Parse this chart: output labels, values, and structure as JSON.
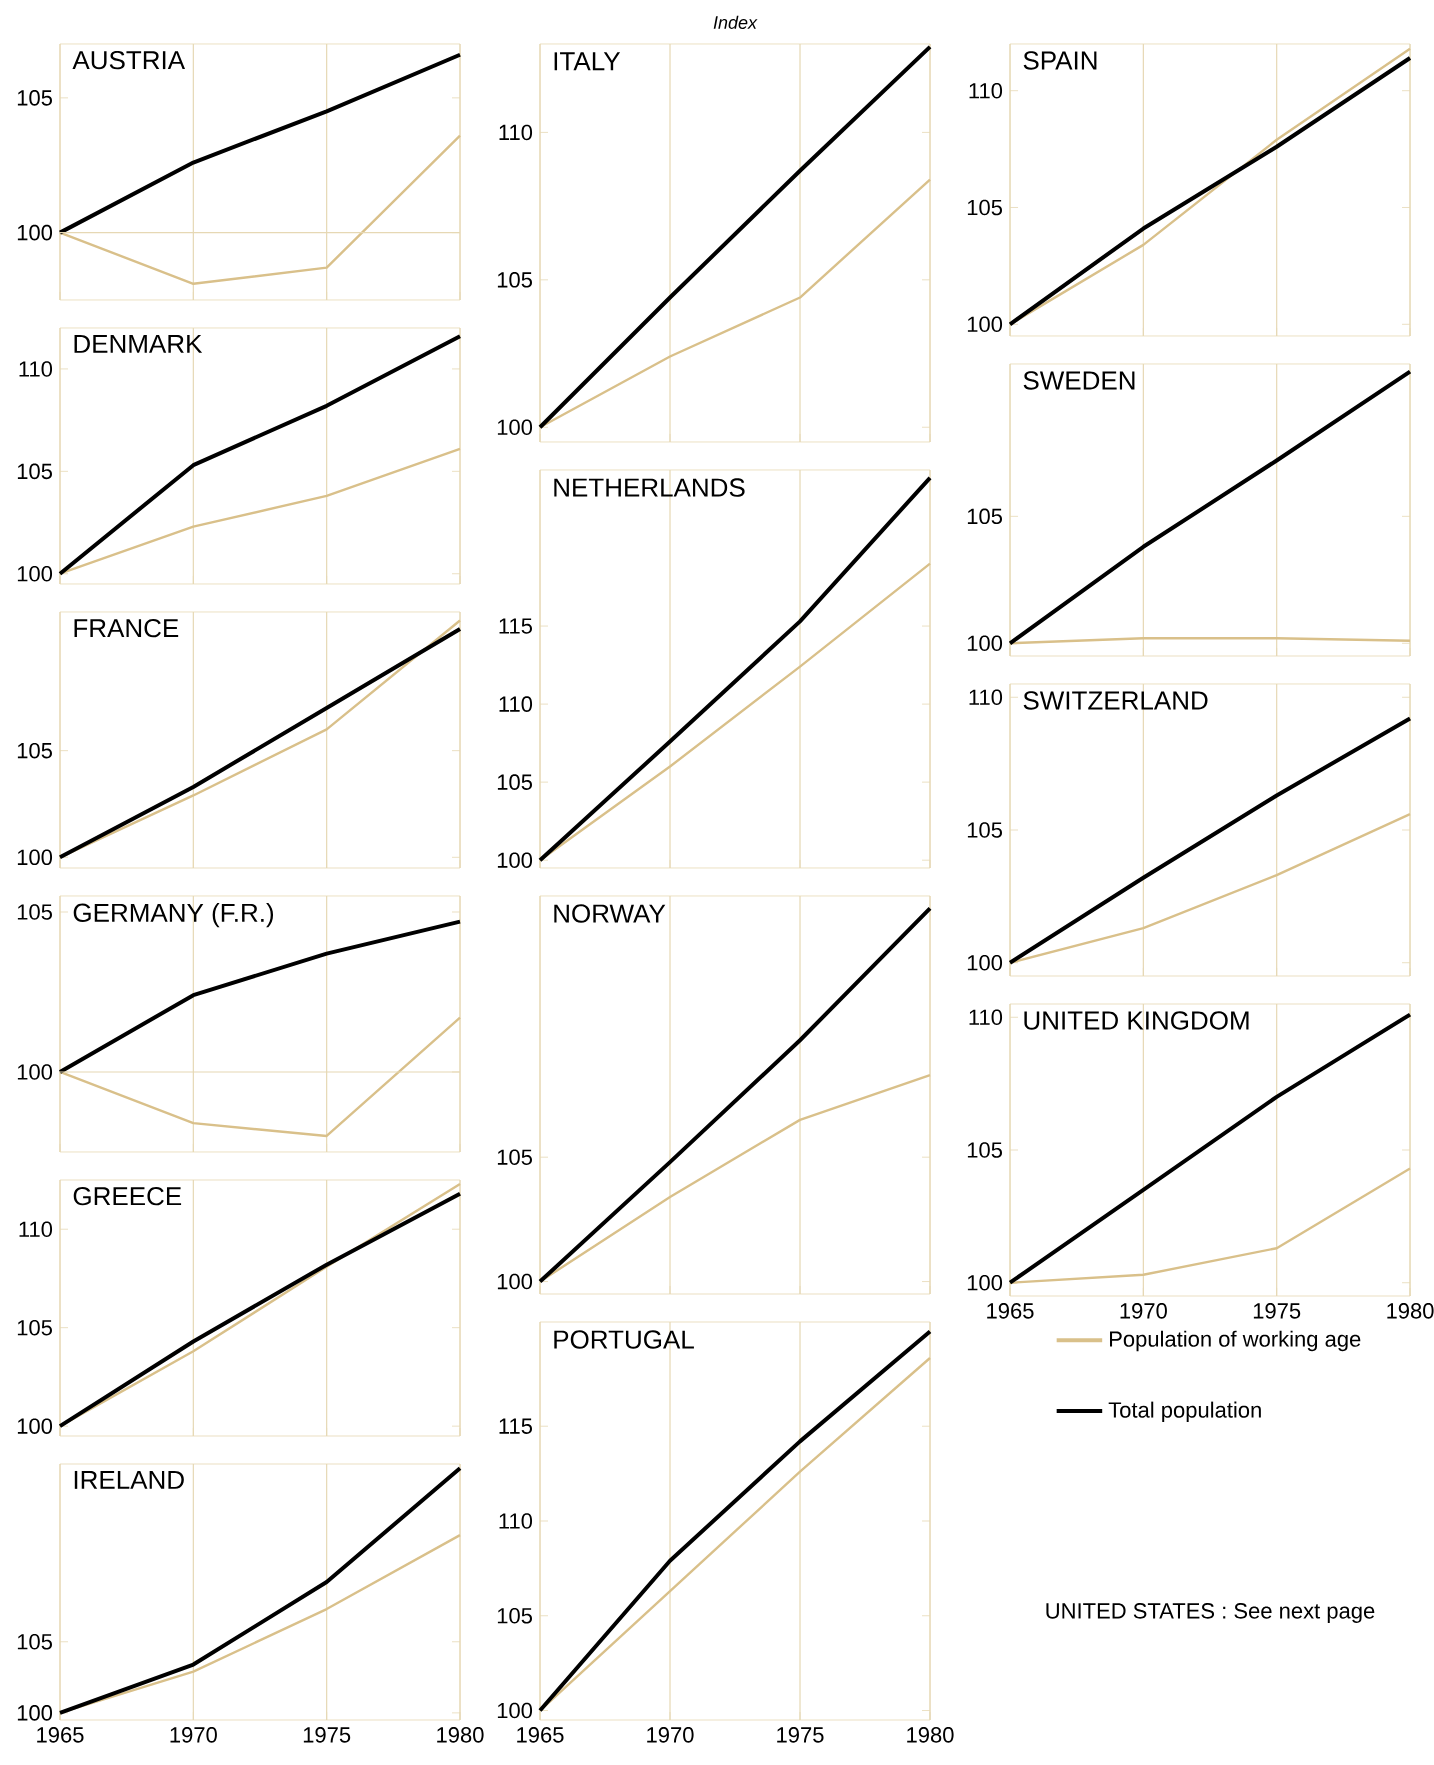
{
  "chart_data": [
    {
      "type": "line",
      "title": "AUSTRIA",
      "x": [
        1965,
        1970,
        1975,
        1980
      ],
      "xlim": [
        1965,
        1980
      ],
      "xticks": [
        1965,
        1970,
        1975,
        1980
      ],
      "ylim": [
        97.5,
        107
      ],
      "yticks": [
        100,
        105
      ],
      "grid": "x",
      "tick_labels": "y",
      "ref_lines": [
        {
          "axis": "y",
          "value": 100,
          "color": "#e6d8b4"
        }
      ],
      "series": [
        {
          "color": "#d9c08a",
          "values": [
            100,
            98.1,
            98.7,
            103.6
          ]
        },
        {
          "color": "#000000",
          "values": [
            100,
            102.6,
            104.5,
            106.6
          ]
        }
      ]
    },
    {
      "type": "line",
      "title": "DENMARK",
      "x": [
        1965,
        1970,
        1975,
        1980
      ],
      "xlim": [
        1965,
        1980
      ],
      "xticks": [
        1965,
        1970,
        1975,
        1980
      ],
      "ylim": [
        99.5,
        112
      ],
      "yticks": [
        100,
        105,
        110
      ],
      "grid": "x",
      "tick_labels": "y",
      "series": [
        {
          "color": "#d9c08a",
          "values": [
            100,
            102.3,
            103.8,
            106.1
          ]
        },
        {
          "color": "#000000",
          "values": [
            100,
            105.3,
            108.2,
            111.6
          ]
        }
      ]
    },
    {
      "type": "line",
      "title": "FRANCE",
      "x": [
        1965,
        1970,
        1975,
        1980
      ],
      "xlim": [
        1965,
        1980
      ],
      "xticks": [
        1965,
        1970,
        1975,
        1980
      ],
      "ylim": [
        99.5,
        111.5
      ],
      "yticks": [
        100,
        105
      ],
      "grid": "x",
      "tick_labels": "y",
      "series": [
        {
          "color": "#d9c08a",
          "values": [
            100,
            102.9,
            106.0,
            111.1
          ]
        },
        {
          "color": "#000000",
          "values": [
            100,
            103.3,
            107.0,
            110.7
          ]
        }
      ]
    },
    {
      "type": "line",
      "title": "GERMANY (F.R.)",
      "x": [
        1965,
        1970,
        1975,
        1980
      ],
      "xlim": [
        1965,
        1980
      ],
      "xticks": [
        1965,
        1970,
        1975,
        1980
      ],
      "ylim": [
        97.5,
        105.5
      ],
      "yticks": [
        100,
        105
      ],
      "grid": "x",
      "tick_labels": "y",
      "ref_lines": [
        {
          "axis": "y",
          "value": 100,
          "color": "#e6d8b4"
        }
      ],
      "series": [
        {
          "color": "#d9c08a",
          "values": [
            100,
            98.4,
            98.0,
            101.7
          ]
        },
        {
          "color": "#000000",
          "values": [
            100,
            102.4,
            103.7,
            104.7
          ]
        }
      ]
    },
    {
      "type": "line",
      "title": "GREECE",
      "x": [
        1965,
        1970,
        1975,
        1980
      ],
      "xlim": [
        1965,
        1980
      ],
      "xticks": [
        1965,
        1970,
        1975,
        1980
      ],
      "ylim": [
        99.5,
        112.5
      ],
      "yticks": [
        100,
        105,
        110
      ],
      "grid": "x",
      "tick_labels": "y",
      "series": [
        {
          "color": "#d9c08a",
          "values": [
            100,
            103.8,
            108.1,
            112.3
          ]
        },
        {
          "color": "#000000",
          "values": [
            100,
            104.3,
            108.2,
            111.8
          ]
        }
      ]
    },
    {
      "type": "line",
      "title": "IRELAND",
      "x": [
        1965,
        1970,
        1975,
        1980
      ],
      "xlim": [
        1965,
        1980
      ],
      "xticks": [
        1965,
        1970,
        1975,
        1980
      ],
      "ylim": [
        99.5,
        117.5
      ],
      "yticks": [
        100,
        105
      ],
      "grid": "x",
      "series": [
        {
          "color": "#d9c08a",
          "values": [
            100,
            102.9,
            107.3,
            112.5
          ]
        },
        {
          "color": "#000000",
          "values": [
            100,
            103.4,
            109.2,
            117.2
          ]
        }
      ]
    },
    {
      "type": "line",
      "title": "ITALY",
      "ylabel": "Index",
      "x": [
        1965,
        1970,
        1975,
        1980
      ],
      "xlim": [
        1965,
        1980
      ],
      "xticks": [
        1965,
        1970,
        1975,
        1980
      ],
      "ylim": [
        99.5,
        113
      ],
      "yticks": [
        100,
        105,
        110
      ],
      "grid": "x",
      "tick_labels": "y",
      "series": [
        {
          "color": "#d9c08a",
          "values": [
            100,
            102.4,
            104.4,
            108.4
          ]
        },
        {
          "color": "#000000",
          "values": [
            100,
            104.4,
            108.7,
            112.9
          ]
        }
      ]
    },
    {
      "type": "line",
      "title": "NETHERLANDS",
      "x": [
        1965,
        1970,
        1975,
        1980
      ],
      "xlim": [
        1965,
        1980
      ],
      "xticks": [
        1965,
        1970,
        1975,
        1980
      ],
      "ylim": [
        99.5,
        125
      ],
      "yticks": [
        100,
        105,
        110,
        115
      ],
      "grid": "x",
      "tick_labels": "y",
      "series": [
        {
          "color": "#d9c08a",
          "values": [
            100,
            106.0,
            112.4,
            119.0
          ]
        },
        {
          "color": "#000000",
          "values": [
            100,
            107.6,
            115.3,
            124.5
          ]
        }
      ]
    },
    {
      "type": "line",
      "title": "NORWAY",
      "x": [
        1965,
        1970,
        1975,
        1980
      ],
      "xlim": [
        1965,
        1980
      ],
      "xticks": [
        1965,
        1970,
        1975,
        1980
      ],
      "ylim": [
        99.5,
        115.5
      ],
      "yticks": [
        100,
        105
      ],
      "grid": "x",
      "tick_labels": "y",
      "series": [
        {
          "color": "#d9c08a",
          "values": [
            100,
            103.4,
            106.5,
            108.3
          ]
        },
        {
          "color": "#000000",
          "values": [
            100,
            104.8,
            109.7,
            115.0
          ]
        }
      ]
    },
    {
      "type": "line",
      "title": "PORTUGAL",
      "x": [
        1965,
        1970,
        1975,
        1980
      ],
      "xlim": [
        1965,
        1980
      ],
      "xticks": [
        1965,
        1970,
        1975,
        1980
      ],
      "ylim": [
        99.5,
        120.5
      ],
      "yticks": [
        100,
        105,
        110,
        115
      ],
      "grid": "x",
      "series": [
        {
          "color": "#d9c08a",
          "values": [
            100,
            106.3,
            112.6,
            118.6
          ]
        },
        {
          "color": "#000000",
          "values": [
            100,
            107.9,
            114.2,
            120.0
          ]
        }
      ]
    },
    {
      "type": "line",
      "title": "SPAIN",
      "x": [
        1965,
        1970,
        1975,
        1980
      ],
      "xlim": [
        1965,
        1980
      ],
      "xticks": [
        1965,
        1970,
        1975,
        1980
      ],
      "ylim": [
        99.5,
        112
      ],
      "yticks": [
        100,
        105,
        110
      ],
      "grid": "x",
      "tick_labels": "y",
      "series": [
        {
          "color": "#d9c08a",
          "values": [
            100,
            103.4,
            107.9,
            111.8
          ]
        },
        {
          "color": "#000000",
          "values": [
            100,
            104.1,
            107.6,
            111.4
          ]
        }
      ]
    },
    {
      "type": "line",
      "title": "SWEDEN",
      "x": [
        1965,
        1970,
        1975,
        1980
      ],
      "xlim": [
        1965,
        1980
      ],
      "xticks": [
        1965,
        1970,
        1975,
        1980
      ],
      "ylim": [
        99.5,
        111
      ],
      "yticks": [
        100,
        105
      ],
      "grid": "x",
      "tick_labels": "y",
      "series": [
        {
          "color": "#d9c08a",
          "values": [
            100,
            100.2,
            100.2,
            100.1
          ]
        },
        {
          "color": "#000000",
          "values": [
            100,
            103.8,
            107.2,
            110.7
          ]
        }
      ]
    },
    {
      "type": "line",
      "title": "SWITZERLAND",
      "x": [
        1965,
        1970,
        1975,
        1980
      ],
      "xlim": [
        1965,
        1980
      ],
      "xticks": [
        1965,
        1970,
        1975,
        1980
      ],
      "ylim": [
        99.5,
        110.5
      ],
      "yticks": [
        100,
        105,
        110
      ],
      "grid": "x",
      "tick_labels": "y",
      "series": [
        {
          "color": "#d9c08a",
          "values": [
            100,
            101.3,
            103.3,
            105.6
          ]
        },
        {
          "color": "#000000",
          "values": [
            100,
            103.2,
            106.3,
            109.2
          ]
        }
      ]
    },
    {
      "type": "line",
      "title": "UNITED KINGDOM",
      "x": [
        1965,
        1970,
        1975,
        1980
      ],
      "xlim": [
        1965,
        1980
      ],
      "xticks": [
        1965,
        1970,
        1975,
        1980
      ],
      "ylim": [
        99.5,
        110.5
      ],
      "yticks": [
        100,
        105,
        110
      ],
      "grid": "x",
      "legend": "bottom",
      "annotations": [
        "UNITED STATES : See next page"
      ],
      "series": [
        {
          "name": "Population of working age",
          "color": "#d9c08a",
          "values": [
            100,
            100.3,
            101.3,
            104.3
          ]
        },
        {
          "name": "Total population",
          "color": "#000000",
          "values": [
            100,
            103.5,
            107.0,
            110.1
          ]
        }
      ]
    }
  ]
}
